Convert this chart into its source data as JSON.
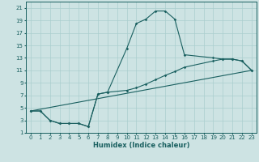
{
  "xlabel": "Humidex (Indice chaleur)",
  "xlim": [
    -0.5,
    23.5
  ],
  "ylim": [
    1,
    22
  ],
  "xticks": [
    0,
    1,
    2,
    3,
    4,
    5,
    6,
    7,
    8,
    9,
    10,
    11,
    12,
    13,
    14,
    15,
    16,
    17,
    18,
    19,
    20,
    21,
    22,
    23
  ],
  "yticks": [
    1,
    3,
    5,
    7,
    9,
    11,
    13,
    15,
    17,
    19,
    21
  ],
  "bg_color": "#cde3e3",
  "grid_color": "#aacece",
  "line_color": "#1a6060",
  "series": [
    {
      "x": [
        0,
        1,
        2,
        3,
        4,
        5,
        6,
        7,
        8,
        10,
        11,
        12,
        13,
        14,
        15,
        16,
        19,
        20,
        21,
        22,
        23
      ],
      "y": [
        4.5,
        4.5,
        3.0,
        2.5,
        2.5,
        2.5,
        2.0,
        7.2,
        7.5,
        14.5,
        18.5,
        19.2,
        20.5,
        20.5,
        19.2,
        13.5,
        13.0,
        12.8,
        12.8,
        12.5,
        11.0
      ],
      "marker": true
    },
    {
      "x": [
        0,
        1,
        2,
        3,
        4,
        5,
        6,
        7,
        8,
        10,
        11,
        12,
        13,
        14,
        15,
        16,
        19,
        20,
        21,
        22,
        23
      ],
      "y": [
        4.5,
        4.5,
        3.0,
        2.5,
        2.5,
        2.5,
        2.0,
        7.2,
        7.5,
        7.8,
        8.2,
        8.8,
        9.5,
        10.2,
        10.8,
        11.5,
        12.5,
        12.8,
        12.8,
        12.5,
        11.0
      ],
      "marker": true
    },
    {
      "x": [
        0,
        23
      ],
      "y": [
        4.5,
        11.0
      ],
      "marker": false
    }
  ]
}
